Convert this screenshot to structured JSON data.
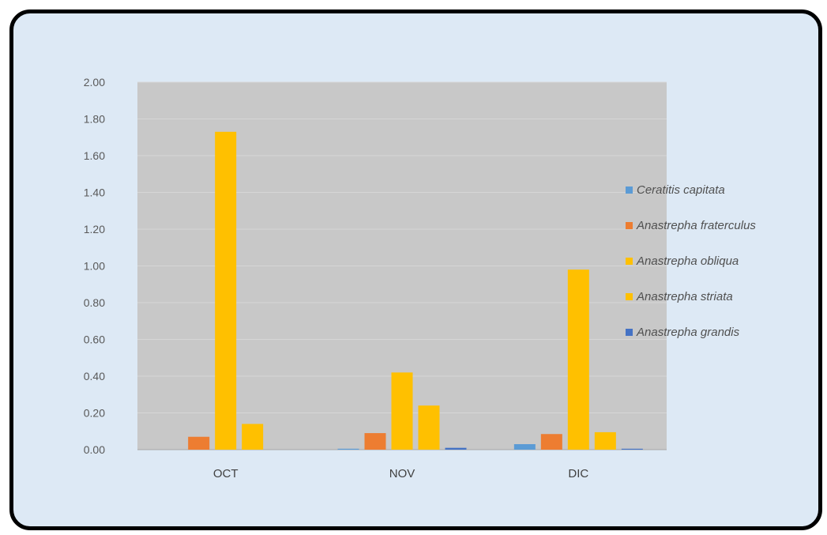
{
  "chart_data": {
    "type": "bar",
    "title": "",
    "xlabel": "",
    "ylabel": "",
    "categories": [
      "OCT",
      "NOV",
      "DIC"
    ],
    "ylim": [
      0,
      2.0
    ],
    "yticks": [
      "0.00",
      "0.20",
      "0.40",
      "0.60",
      "0.80",
      "1.00",
      "1.20",
      "1.40",
      "1.60",
      "1.80",
      "2.00"
    ],
    "grid": true,
    "legend_position": "right",
    "plot_background": "#c8c8c8",
    "series": [
      {
        "name": "Ceratitis capitata",
        "color": "#5b9bd5",
        "values": [
          0.0,
          0.005,
          0.03
        ]
      },
      {
        "name": "Anastrepha fraterculus",
        "color": "#ed7d31",
        "values": [
          0.07,
          0.09,
          0.085
        ]
      },
      {
        "name": "Anastrepha obliqua",
        "color": "#ffc000",
        "values": [
          1.73,
          0.42,
          0.98
        ]
      },
      {
        "name": "Anastrepha striata",
        "color": "#ffc000",
        "values": [
          0.14,
          0.24,
          0.095
        ]
      },
      {
        "name": "Anastrepha grandis",
        "color": "#4472c4",
        "values": [
          0.0,
          0.01,
          0.005
        ]
      }
    ]
  }
}
